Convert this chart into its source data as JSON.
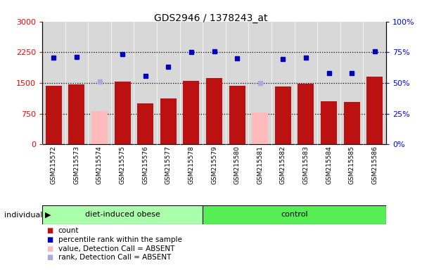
{
  "title": "GDS2946 / 1378243_at",
  "samples": [
    "GSM215572",
    "GSM215573",
    "GSM215574",
    "GSM215575",
    "GSM215576",
    "GSM215577",
    "GSM215578",
    "GSM215579",
    "GSM215580",
    "GSM215581",
    "GSM215582",
    "GSM215583",
    "GSM215584",
    "GSM215585",
    "GSM215586"
  ],
  "n_obese": 7,
  "n_control": 8,
  "bar_values": [
    1430,
    1470,
    null,
    1540,
    1000,
    1130,
    1560,
    1630,
    1430,
    null,
    1410,
    1490,
    1050,
    1040,
    1650
  ],
  "bar_absent": [
    null,
    null,
    810,
    null,
    null,
    null,
    null,
    null,
    null,
    780,
    null,
    null,
    null,
    null,
    null
  ],
  "rank_values": [
    2120,
    2140,
    null,
    2200,
    1680,
    1900,
    2260,
    2280,
    2100,
    null,
    2080,
    2120,
    1750,
    1750,
    2270
  ],
  "rank_absent": [
    null,
    null,
    1540,
    null,
    null,
    null,
    null,
    null,
    null,
    1500,
    null,
    null,
    null,
    null,
    null
  ],
  "bar_color": "#bb1111",
  "bar_absent_color": "#ffbbbb",
  "rank_color": "#0000bb",
  "rank_absent_color": "#aaaadd",
  "group_color_obese": "#aaffaa",
  "group_color_control": "#55ee55",
  "bg_color": "#d8d8d8",
  "ylim_left": [
    0,
    3000
  ],
  "yticks_left": [
    0,
    750,
    1500,
    2250,
    3000
  ],
  "ytick_labels_left": [
    "0",
    "750",
    "1500",
    "2250",
    "3000"
  ],
  "yticks_right_pct": [
    0,
    25,
    50,
    75,
    100
  ],
  "ytick_labels_right": [
    "0%",
    "25%",
    "50%",
    "75%",
    "100%"
  ],
  "dotted_lines": [
    750,
    1500,
    2250
  ],
  "label_obese": "diet-induced obese",
  "label_control": "control",
  "individual_label": "individual"
}
